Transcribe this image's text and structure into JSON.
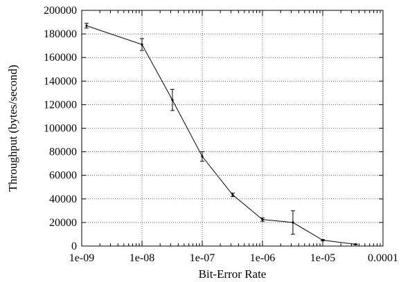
{
  "chart_data": {
    "type": "line",
    "xlabel": "Bit-Error Rate",
    "ylabel": "Throughput (bytes/second)",
    "x_scale": "log",
    "xlim": [
      1e-09,
      0.0001
    ],
    "ylim": [
      0,
      200000
    ],
    "grid": true,
    "x_ticks": [
      {
        "value": 1e-09,
        "label": "1e-09"
      },
      {
        "value": 1e-08,
        "label": "1e-08"
      },
      {
        "value": 1e-07,
        "label": "1e-07"
      },
      {
        "value": 1e-06,
        "label": "1e-06"
      },
      {
        "value": 1e-05,
        "label": "1e-05"
      },
      {
        "value": 0.0001,
        "label": "0.0001"
      }
    ],
    "y_ticks": [
      {
        "value": 0,
        "label": "0"
      },
      {
        "value": 20000,
        "label": "20000"
      },
      {
        "value": 40000,
        "label": "40000"
      },
      {
        "value": 60000,
        "label": "60000"
      },
      {
        "value": 80000,
        "label": "80000"
      },
      {
        "value": 100000,
        "label": "100000"
      },
      {
        "value": 120000,
        "label": "120000"
      },
      {
        "value": 140000,
        "label": "140000"
      },
      {
        "value": 160000,
        "label": "160000"
      },
      {
        "value": 180000,
        "label": "180000"
      },
      {
        "value": 200000,
        "label": "200000"
      }
    ],
    "series": [
      {
        "color": "#000000",
        "points": [
          {
            "x": 1.2e-09,
            "y": 187000,
            "err": 2000
          },
          {
            "x": 1e-08,
            "y": 171000,
            "err": 5000
          },
          {
            "x": 3.2e-08,
            "y": 124000,
            "err": 9000
          },
          {
            "x": 1e-07,
            "y": 76000,
            "err": 4000
          },
          {
            "x": 3.2e-07,
            "y": 43500,
            "err": 1500
          },
          {
            "x": 1e-06,
            "y": 22500,
            "err": 1500
          },
          {
            "x": 3.2e-06,
            "y": 20000,
            "err": 10000
          },
          {
            "x": 1e-05,
            "y": 5000,
            "err": 500
          },
          {
            "x": 3.5e-05,
            "y": 1500,
            "err": 300
          }
        ]
      }
    ]
  }
}
